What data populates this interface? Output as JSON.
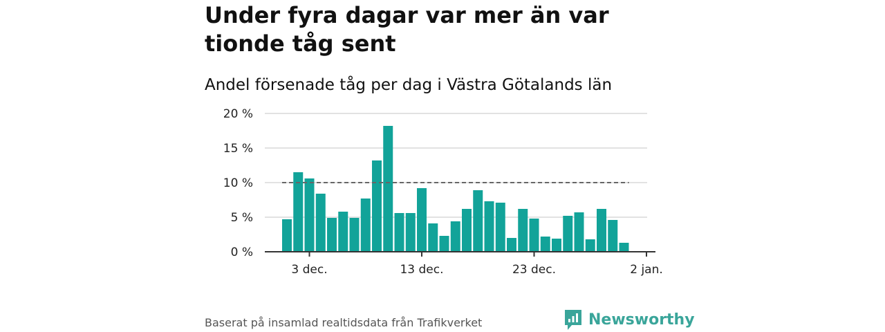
{
  "title": "Under fyra dagar var mer än var tionde tåg sent",
  "subtitle": "Andel försenade tåg per dag i Västra Götalands län",
  "footer": "Baserat på insamlad realtidsdata från Trafikverket",
  "brand": {
    "name": "Newsworthy",
    "icon": "newsworthy-logo-icon",
    "color": "#3aa59a"
  },
  "chart_data": {
    "type": "bar",
    "x": [
      "2021-12-01",
      "2021-12-02",
      "2021-12-03",
      "2021-12-04",
      "2021-12-05",
      "2021-12-06",
      "2021-12-07",
      "2021-12-08",
      "2021-12-09",
      "2021-12-10",
      "2021-12-11",
      "2021-12-12",
      "2021-12-13",
      "2021-12-14",
      "2021-12-15",
      "2021-12-16",
      "2021-12-17",
      "2021-12-18",
      "2021-12-19",
      "2021-12-20",
      "2021-12-21",
      "2021-12-22",
      "2021-12-23",
      "2021-12-24",
      "2021-12-25",
      "2021-12-26",
      "2021-12-27",
      "2021-12-28",
      "2021-12-29",
      "2021-12-30",
      "2021-12-31"
    ],
    "values": [
      4.7,
      11.5,
      10.6,
      8.4,
      4.9,
      5.8,
      4.9,
      7.7,
      13.2,
      18.2,
      5.6,
      5.6,
      9.2,
      4.1,
      2.3,
      4.4,
      6.2,
      8.9,
      7.3,
      7.1,
      2.0,
      6.2,
      4.8,
      2.2,
      1.9,
      5.2,
      5.7,
      1.8,
      6.2,
      4.6,
      1.3
    ],
    "reference_line": 10,
    "ylim": [
      0,
      20
    ],
    "yticks": [
      0,
      5,
      10,
      15,
      20
    ],
    "ytick_labels": [
      "0 %",
      "5 %",
      "10 %",
      "15 %",
      "20 %"
    ],
    "xtick_labels": [
      "3 dec.",
      "13 dec.",
      "23 dec.",
      "2 jan."
    ],
    "xtick_positions": [
      "2021-12-03",
      "2021-12-13",
      "2021-12-23",
      "2022-01-02"
    ],
    "grid": true,
    "bar_color": "#12a399",
    "reference_line_color": "#666666"
  }
}
